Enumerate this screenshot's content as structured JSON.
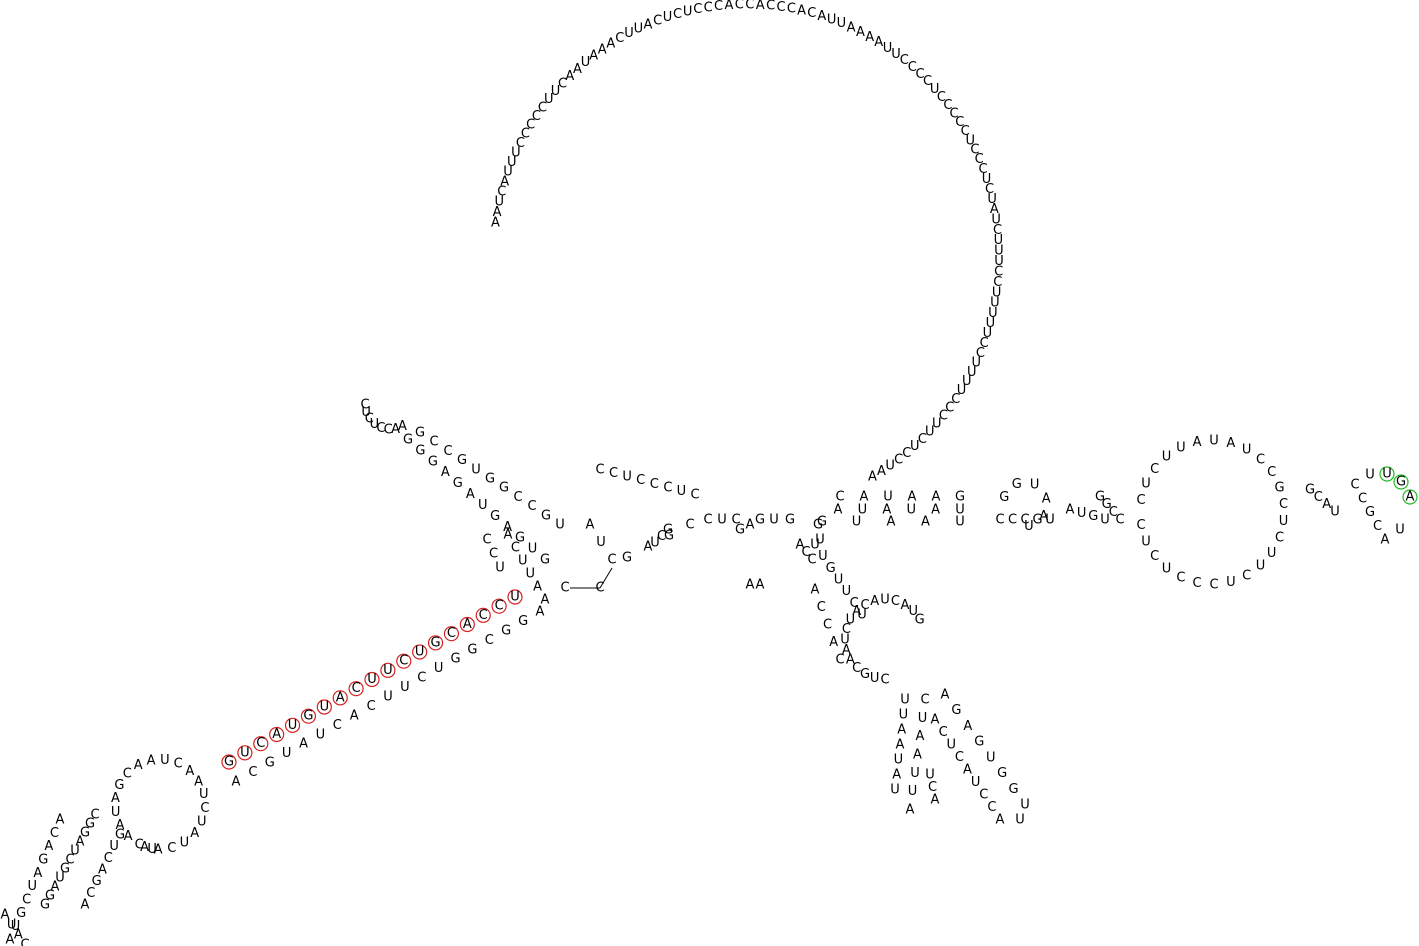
{
  "colors": {
    "highlight_red": "#d62020",
    "highlight_green": "#22bb22"
  },
  "sequence": {
    "terminal_loop": "GAUCCACCACGGUAGGACUCCUCAGUUGGUGCUCUUCUACCAAACUCCUAGUUGAACUAAUAUCAAACGCAAUACGGCUC",
    "big_loop": "AAUCAUUUCCCCCUUCAAUAAACUUACUCUCCCACCACCCACAUUAAAAUUCCCCUCCCCCUCCCUCUAUCUUUCCUUUUUCCUUUUCCCUUCUCCUAA"
  },
  "highlighted_red": [
    "G",
    "U",
    "C",
    "A",
    "U",
    "G",
    "U",
    "A",
    "C",
    "U",
    "U",
    "C",
    "U",
    "G",
    "C",
    "A",
    "C",
    "C",
    "U"
  ],
  "highlighted_green": [
    "U",
    "G",
    "A"
  ]
}
